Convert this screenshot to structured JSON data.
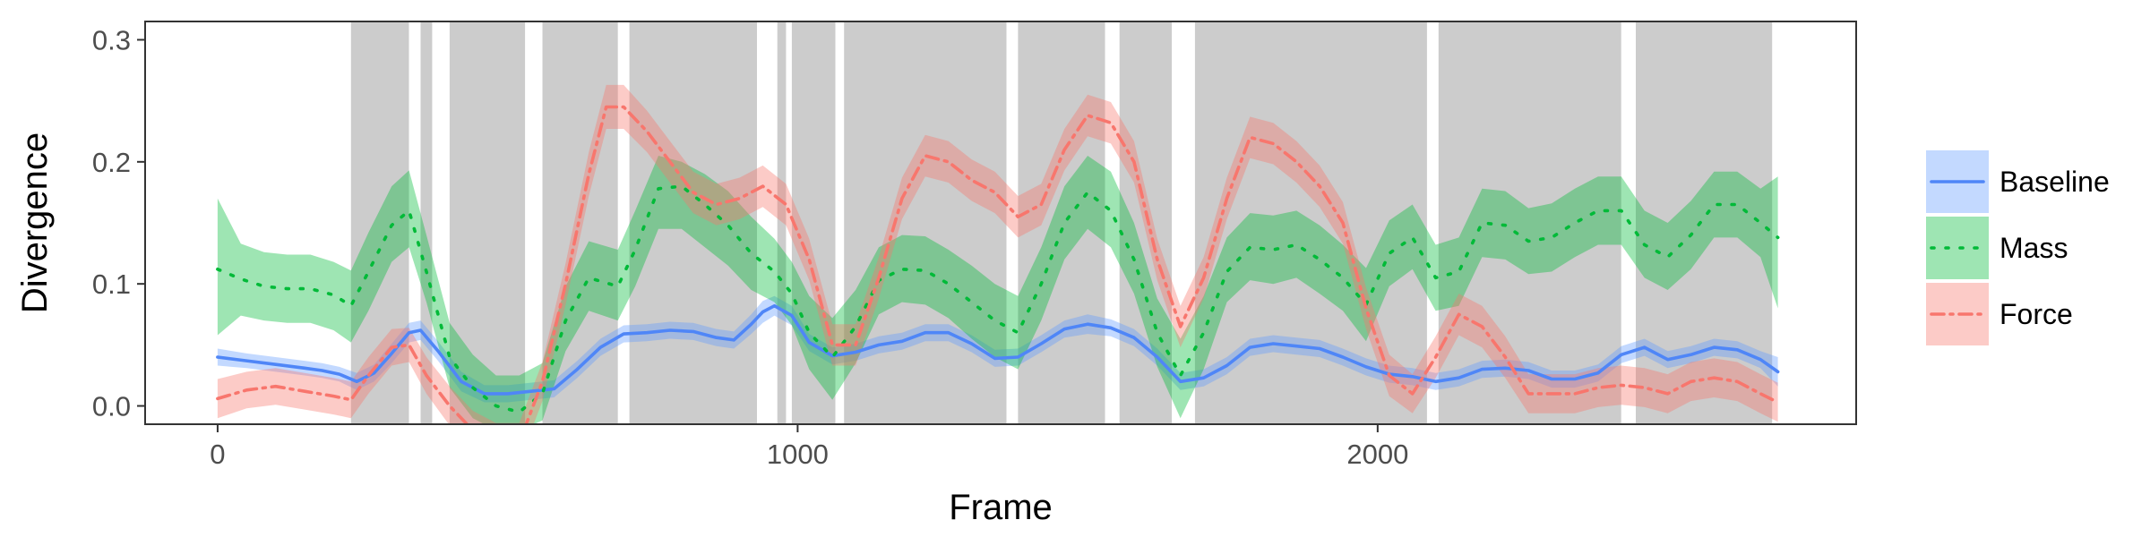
{
  "chart_data": {
    "type": "line",
    "title": "",
    "xlabel": "Frame",
    "ylabel": "Divergence",
    "xlim": [
      -125,
      2825
    ],
    "ylim": [
      -0.015,
      0.315
    ],
    "x_ticks": [
      {
        "value": 0,
        "label": "0"
      },
      {
        "value": 1000,
        "label": "1000"
      },
      {
        "value": 2000,
        "label": "2000"
      }
    ],
    "y_ticks": [
      {
        "value": 0.0,
        "label": "0.0"
      },
      {
        "value": 0.1,
        "label": "0.1"
      },
      {
        "value": 0.2,
        "label": "0.2"
      },
      {
        "value": 0.3,
        "label": "0.3"
      }
    ],
    "grid": false,
    "legend_position": "right",
    "shaded_regions": [
      [
        230,
        330
      ],
      [
        350,
        370
      ],
      [
        400,
        530
      ],
      [
        560,
        690
      ],
      [
        710,
        930
      ],
      [
        965,
        980
      ],
      [
        990,
        1065
      ],
      [
        1080,
        1360
      ],
      [
        1380,
        1530
      ],
      [
        1555,
        1645
      ],
      [
        1685,
        2085
      ],
      [
        2105,
        2420
      ],
      [
        2445,
        2680
      ]
    ],
    "shaded_color": "#cccccc",
    "series": [
      {
        "name": "Baseline",
        "color": "#619cff",
        "line_color": "#4f86f7",
        "dash": "",
        "x": [
          0,
          50,
          100,
          150,
          180,
          210,
          240,
          270,
          300,
          330,
          350,
          380,
          420,
          460,
          500,
          540,
          580,
          620,
          660,
          700,
          740,
          780,
          820,
          860,
          890,
          920,
          940,
          960,
          990,
          1020,
          1060,
          1100,
          1140,
          1180,
          1220,
          1260,
          1300,
          1340,
          1380,
          1420,
          1460,
          1500,
          1540,
          1580,
          1620,
          1660,
          1700,
          1740,
          1780,
          1820,
          1860,
          1900,
          1940,
          1980,
          2020,
          2060,
          2100,
          2140,
          2180,
          2220,
          2260,
          2300,
          2340,
          2380,
          2420,
          2460,
          2500,
          2540,
          2580,
          2620,
          2660,
          2690
        ],
        "y": [
          0.04,
          0.037,
          0.034,
          0.031,
          0.029,
          0.026,
          0.02,
          0.027,
          0.043,
          0.06,
          0.062,
          0.045,
          0.02,
          0.01,
          0.01,
          0.012,
          0.014,
          0.03,
          0.048,
          0.059,
          0.06,
          0.062,
          0.061,
          0.056,
          0.054,
          0.067,
          0.077,
          0.082,
          0.074,
          0.052,
          0.041,
          0.044,
          0.05,
          0.053,
          0.06,
          0.06,
          0.051,
          0.039,
          0.04,
          0.051,
          0.063,
          0.067,
          0.064,
          0.056,
          0.04,
          0.02,
          0.023,
          0.033,
          0.048,
          0.051,
          0.049,
          0.047,
          0.04,
          0.032,
          0.026,
          0.024,
          0.02,
          0.023,
          0.03,
          0.031,
          0.029,
          0.022,
          0.022,
          0.027,
          0.042,
          0.048,
          0.038,
          0.042,
          0.048,
          0.046,
          0.038,
          0.028
        ],
        "lower": [
          0.033,
          0.031,
          0.028,
          0.025,
          0.023,
          0.02,
          0.013,
          0.02,
          0.035,
          0.052,
          0.054,
          0.037,
          0.012,
          0.003,
          0.003,
          0.005,
          0.007,
          0.023,
          0.041,
          0.052,
          0.053,
          0.055,
          0.054,
          0.049,
          0.047,
          0.059,
          0.068,
          0.074,
          0.066,
          0.045,
          0.034,
          0.037,
          0.043,
          0.046,
          0.053,
          0.053,
          0.044,
          0.032,
          0.033,
          0.044,
          0.056,
          0.059,
          0.057,
          0.049,
          0.033,
          0.013,
          0.016,
          0.026,
          0.041,
          0.044,
          0.042,
          0.04,
          0.033,
          0.025,
          0.019,
          0.017,
          0.013,
          0.016,
          0.023,
          0.024,
          0.022,
          0.015,
          0.015,
          0.02,
          0.035,
          0.041,
          0.031,
          0.035,
          0.041,
          0.039,
          0.031,
          0.016
        ],
        "upper": [
          0.047,
          0.043,
          0.04,
          0.037,
          0.035,
          0.032,
          0.027,
          0.034,
          0.051,
          0.068,
          0.07,
          0.053,
          0.028,
          0.017,
          0.017,
          0.019,
          0.021,
          0.037,
          0.055,
          0.066,
          0.067,
          0.069,
          0.068,
          0.063,
          0.061,
          0.075,
          0.086,
          0.09,
          0.082,
          0.059,
          0.048,
          0.051,
          0.057,
          0.06,
          0.067,
          0.067,
          0.058,
          0.046,
          0.047,
          0.058,
          0.07,
          0.075,
          0.071,
          0.063,
          0.047,
          0.027,
          0.03,
          0.04,
          0.055,
          0.058,
          0.056,
          0.054,
          0.047,
          0.039,
          0.033,
          0.031,
          0.027,
          0.03,
          0.037,
          0.038,
          0.036,
          0.029,
          0.029,
          0.034,
          0.049,
          0.055,
          0.045,
          0.049,
          0.055,
          0.053,
          0.045,
          0.04
        ]
      },
      {
        "name": "Mass",
        "color": "#00ba38",
        "line_color": "#00ba38",
        "dash": "3 13",
        "x": [
          0,
          40,
          80,
          120,
          160,
          200,
          230,
          260,
          300,
          330,
          360,
          400,
          440,
          480,
          520,
          560,
          600,
          640,
          690,
          720,
          760,
          800,
          840,
          880,
          920,
          960,
          990,
          1020,
          1060,
          1100,
          1140,
          1180,
          1220,
          1260,
          1300,
          1340,
          1380,
          1420,
          1460,
          1500,
          1540,
          1580,
          1620,
          1660,
          1700,
          1740,
          1780,
          1820,
          1860,
          1900,
          1940,
          1980,
          2020,
          2060,
          2100,
          2140,
          2180,
          2220,
          2260,
          2300,
          2340,
          2380,
          2420,
          2460,
          2500,
          2540,
          2580,
          2620,
          2660,
          2690
        ],
        "y": [
          0.112,
          0.104,
          0.098,
          0.096,
          0.096,
          0.091,
          0.082,
          0.11,
          0.148,
          0.16,
          0.11,
          0.04,
          0.015,
          0.0,
          -0.005,
          0.01,
          0.07,
          0.105,
          0.098,
          0.128,
          0.178,
          0.18,
          0.165,
          0.148,
          0.125,
          0.11,
          0.092,
          0.06,
          0.04,
          0.065,
          0.103,
          0.112,
          0.111,
          0.1,
          0.085,
          0.07,
          0.06,
          0.1,
          0.15,
          0.175,
          0.16,
          0.12,
          0.06,
          0.025,
          0.06,
          0.11,
          0.13,
          0.128,
          0.132,
          0.12,
          0.105,
          0.083,
          0.125,
          0.138,
          0.105,
          0.11,
          0.15,
          0.148,
          0.135,
          0.138,
          0.15,
          0.16,
          0.16,
          0.132,
          0.122,
          0.14,
          0.165,
          0.165,
          0.15,
          0.138
        ],
        "lower": [
          0.058,
          0.074,
          0.07,
          0.068,
          0.068,
          0.062,
          0.052,
          0.078,
          0.118,
          0.13,
          0.085,
          0.015,
          -0.01,
          -0.02,
          -0.02,
          -0.012,
          0.045,
          0.078,
          0.07,
          0.098,
          0.145,
          0.145,
          0.13,
          0.115,
          0.095,
          0.085,
          0.066,
          0.03,
          0.005,
          0.035,
          0.075,
          0.085,
          0.083,
          0.072,
          0.055,
          0.04,
          0.03,
          0.07,
          0.12,
          0.145,
          0.13,
          0.092,
          0.032,
          -0.01,
          0.03,
          0.085,
          0.103,
          0.1,
          0.105,
          0.092,
          0.078,
          0.053,
          0.098,
          0.112,
          0.078,
          0.082,
          0.122,
          0.12,
          0.108,
          0.11,
          0.122,
          0.132,
          0.132,
          0.105,
          0.095,
          0.112,
          0.138,
          0.138,
          0.122,
          0.08
        ],
        "upper": [
          0.17,
          0.133,
          0.126,
          0.124,
          0.124,
          0.118,
          0.111,
          0.142,
          0.18,
          0.193,
          0.14,
          0.068,
          0.042,
          0.025,
          0.025,
          0.035,
          0.098,
          0.135,
          0.128,
          0.16,
          0.205,
          0.2,
          0.19,
          0.176,
          0.155,
          0.137,
          0.118,
          0.09,
          0.072,
          0.095,
          0.13,
          0.14,
          0.139,
          0.128,
          0.115,
          0.1,
          0.09,
          0.13,
          0.18,
          0.205,
          0.192,
          0.15,
          0.088,
          0.055,
          0.09,
          0.138,
          0.158,
          0.156,
          0.16,
          0.148,
          0.132,
          0.113,
          0.152,
          0.165,
          0.132,
          0.138,
          0.178,
          0.176,
          0.162,
          0.166,
          0.178,
          0.188,
          0.188,
          0.16,
          0.15,
          0.168,
          0.192,
          0.192,
          0.178,
          0.188
        ]
      },
      {
        "name": "Force",
        "color": "#f8766d",
        "line_color": "#f8766d",
        "dash": "14 7 3 7",
        "x": [
          0,
          50,
          100,
          150,
          200,
          230,
          260,
          300,
          330,
          360,
          400,
          440,
          480,
          520,
          560,
          600,
          640,
          670,
          700,
          740,
          780,
          820,
          860,
          900,
          940,
          980,
          1020,
          1060,
          1100,
          1140,
          1180,
          1220,
          1260,
          1300,
          1340,
          1380,
          1420,
          1460,
          1500,
          1540,
          1580,
          1620,
          1660,
          1700,
          1740,
          1780,
          1820,
          1860,
          1900,
          1940,
          1980,
          2020,
          2060,
          2100,
          2140,
          2180,
          2220,
          2260,
          2300,
          2340,
          2380,
          2420,
          2460,
          2500,
          2540,
          2580,
          2620,
          2660,
          2690
        ],
        "y": [
          0.006,
          0.013,
          0.016,
          0.012,
          0.008,
          0.005,
          0.025,
          0.048,
          0.05,
          0.025,
          0.0,
          -0.02,
          -0.03,
          -0.03,
          0.02,
          0.1,
          0.19,
          0.245,
          0.245,
          0.225,
          0.2,
          0.175,
          0.165,
          0.17,
          0.18,
          0.165,
          0.12,
          0.05,
          0.05,
          0.105,
          0.17,
          0.205,
          0.2,
          0.185,
          0.175,
          0.155,
          0.165,
          0.21,
          0.238,
          0.232,
          0.2,
          0.12,
          0.065,
          0.105,
          0.17,
          0.22,
          0.215,
          0.2,
          0.18,
          0.15,
          0.08,
          0.025,
          0.01,
          0.04,
          0.075,
          0.065,
          0.04,
          0.01,
          0.01,
          0.01,
          0.015,
          0.017,
          0.015,
          0.01,
          0.02,
          0.023,
          0.02,
          0.01,
          0.003
        ],
        "lower": [
          -0.01,
          -0.002,
          0.001,
          -0.003,
          -0.007,
          -0.01,
          0.01,
          0.033,
          0.036,
          0.01,
          -0.016,
          -0.036,
          -0.046,
          -0.046,
          0.004,
          0.083,
          0.172,
          0.227,
          0.227,
          0.208,
          0.183,
          0.158,
          0.148,
          0.153,
          0.163,
          0.148,
          0.103,
          0.033,
          0.033,
          0.088,
          0.153,
          0.188,
          0.183,
          0.168,
          0.158,
          0.138,
          0.148,
          0.193,
          0.221,
          0.215,
          0.183,
          0.103,
          0.048,
          0.088,
          0.153,
          0.203,
          0.198,
          0.183,
          0.163,
          0.133,
          0.063,
          0.008,
          -0.006,
          0.023,
          0.058,
          0.048,
          0.023,
          -0.006,
          -0.006,
          -0.006,
          -0.001,
          0.001,
          -0.001,
          -0.006,
          0.004,
          0.007,
          0.004,
          -0.006,
          -0.013
        ],
        "upper": [
          0.022,
          0.028,
          0.031,
          0.027,
          0.023,
          0.02,
          0.04,
          0.063,
          0.064,
          0.04,
          0.016,
          -0.004,
          -0.014,
          -0.014,
          0.036,
          0.117,
          0.208,
          0.263,
          0.263,
          0.242,
          0.217,
          0.192,
          0.182,
          0.187,
          0.197,
          0.182,
          0.137,
          0.067,
          0.067,
          0.122,
          0.187,
          0.222,
          0.217,
          0.202,
          0.192,
          0.172,
          0.182,
          0.227,
          0.255,
          0.249,
          0.217,
          0.137,
          0.082,
          0.122,
          0.187,
          0.237,
          0.232,
          0.217,
          0.197,
          0.167,
          0.097,
          0.042,
          0.026,
          0.057,
          0.092,
          0.082,
          0.057,
          0.026,
          0.026,
          0.026,
          0.031,
          0.033,
          0.031,
          0.026,
          0.036,
          0.039,
          0.036,
          0.026,
          0.019
        ]
      }
    ]
  }
}
